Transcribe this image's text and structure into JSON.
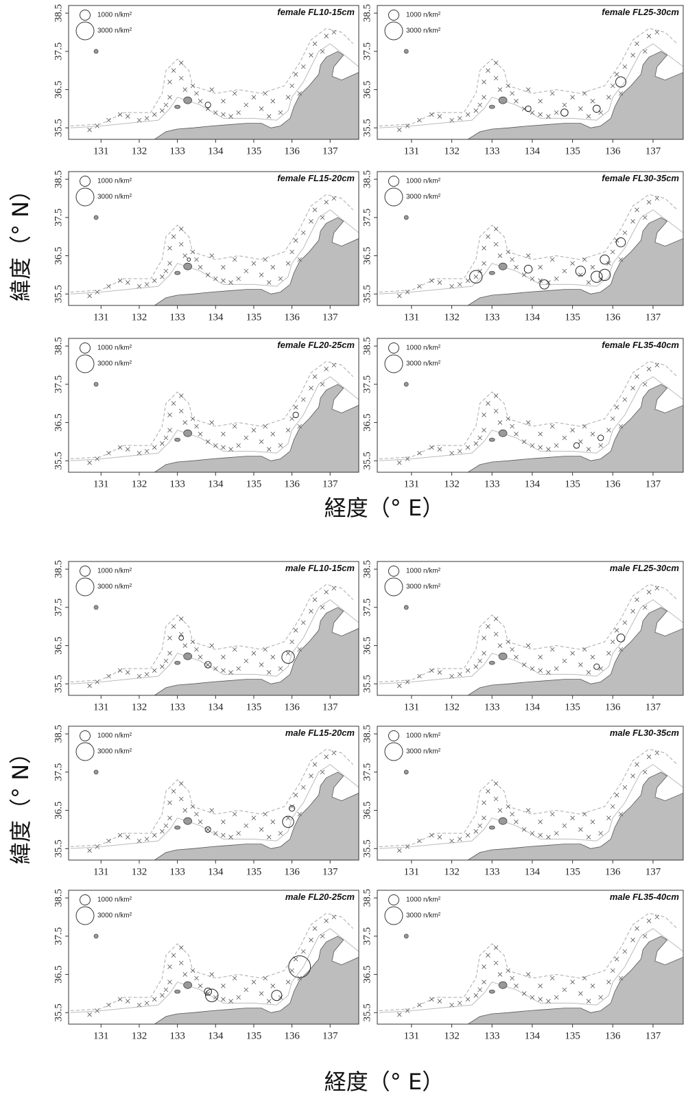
{
  "xlim": [
    130.15,
    137.75
  ],
  "ylim": [
    35.2,
    38.7
  ],
  "xticks": [
    131,
    132,
    133,
    134,
    135,
    136,
    137
  ],
  "yticks": [
    35.5,
    36.5,
    37.5,
    38.5
  ],
  "legend": {
    "values": [
      1000,
      3000
    ],
    "value_labels": [
      "1000 n/km²",
      "3000 n/km²"
    ]
  },
  "stations": {
    "lon": [
      130.7,
      130.9,
      131.2,
      131.5,
      131.7,
      132.0,
      132.2,
      132.4,
      132.6,
      132.7,
      132.8,
      132.8,
      132.9,
      133.1,
      133.1,
      133.2,
      133.4,
      133.5,
      133.6,
      133.8,
      134.0,
      134.2,
      134.4,
      134.6,
      134.8,
      135.0,
      135.2,
      135.4,
      135.5,
      135.7,
      135.9,
      136.0,
      136.1,
      136.3,
      136.2,
      136.5,
      136.6,
      136.9,
      137.1,
      136.8,
      134.5,
      134.2,
      133.9,
      135.3
    ],
    "lat": [
      35.45,
      35.55,
      35.7,
      35.85,
      35.8,
      35.7,
      35.75,
      35.85,
      35.95,
      36.1,
      36.3,
      36.7,
      37.0,
      37.2,
      36.8,
      36.5,
      36.6,
      36.4,
      36.2,
      36.0,
      35.9,
      35.85,
      35.8,
      35.9,
      36.1,
      36.3,
      36.0,
      35.8,
      36.2,
      35.9,
      36.3,
      36.6,
      36.9,
      37.1,
      36.4,
      37.4,
      37.7,
      37.9,
      38.0,
      37.5,
      36.4,
      36.2,
      36.5,
      36.4
    ]
  },
  "figures": [
    {
      "x_label": "経度（° E）",
      "y_label": "緯度（° N）",
      "panels": [
        {
          "title": "female FL10-15cm",
          "catches": {
            "lon": [
              133.8
            ],
            "lat": [
              36.1
            ],
            "density": [
              300
            ]
          }
        },
        {
          "title": "female FL15-20cm",
          "catches": {
            "lon": [
              133.3
            ],
            "lat": [
              36.4
            ],
            "density": [
              100
            ]
          }
        },
        {
          "title": "female FL20-25cm",
          "catches": {
            "lon": [
              136.1
            ],
            "lat": [
              36.7
            ],
            "density": [
              300
            ]
          }
        },
        {
          "title": "female FL25-30cm",
          "catches": {
            "lon": [
              136.2,
              135.6,
              134.8,
              133.9
            ],
            "lat": [
              36.7,
              36.0,
              35.9,
              36.0
            ],
            "density": [
              1000,
              500,
              500,
              300
            ]
          }
        },
        {
          "title": "female FL30-35cm",
          "catches": {
            "lon": [
              132.6,
              134.3,
              135.2,
              135.6,
              135.8,
              135.8,
              136.2,
              133.9
            ],
            "lat": [
              35.95,
              35.75,
              36.1,
              35.95,
              36.0,
              36.4,
              36.85,
              36.15
            ],
            "density": [
              1500,
              800,
              900,
              1200,
              1200,
              800,
              800,
              600
            ]
          }
        },
        {
          "title": "female FL35-40cm",
          "catches": {
            "lon": [
              135.1,
              135.7
            ],
            "lat": [
              35.9,
              36.1
            ],
            "density": [
              300,
              300
            ]
          }
        }
      ]
    },
    {
      "x_label": "経度（° E）",
      "y_label": "緯度（° N）",
      "panels": [
        {
          "title": "male FL10-15cm",
          "catches": {
            "lon": [
              135.9,
              133.8,
              133.1
            ],
            "lat": [
              36.2,
              36.0,
              36.7
            ],
            "density": [
              1500,
              400,
              200
            ]
          }
        },
        {
          "title": "male FL15-20cm",
          "catches": {
            "lon": [
              135.9,
              133.8,
              136.0
            ],
            "lat": [
              36.2,
              36.0,
              36.55
            ],
            "density": [
              1200,
              300,
              300
            ]
          }
        },
        {
          "title": "male FL20-25cm",
          "catches": {
            "lon": [
              136.2,
              133.9,
              135.6,
              133.8
            ],
            "lat": [
              36.7,
              35.95,
              35.95,
              36.05
            ],
            "density": [
              4500,
              1500,
              1000,
              500
            ]
          }
        },
        {
          "title": "male FL25-30cm",
          "catches": {
            "lon": [
              136.2,
              135.6
            ],
            "lat": [
              36.7,
              35.95
            ],
            "density": [
              600,
              300
            ]
          }
        },
        {
          "title": "male FL30-35cm",
          "catches": {
            "lon": [],
            "lat": [],
            "density": []
          }
        },
        {
          "title": "male FL35-40cm",
          "catches": {
            "lon": [],
            "lat": [],
            "density": []
          }
        }
      ]
    }
  ]
}
